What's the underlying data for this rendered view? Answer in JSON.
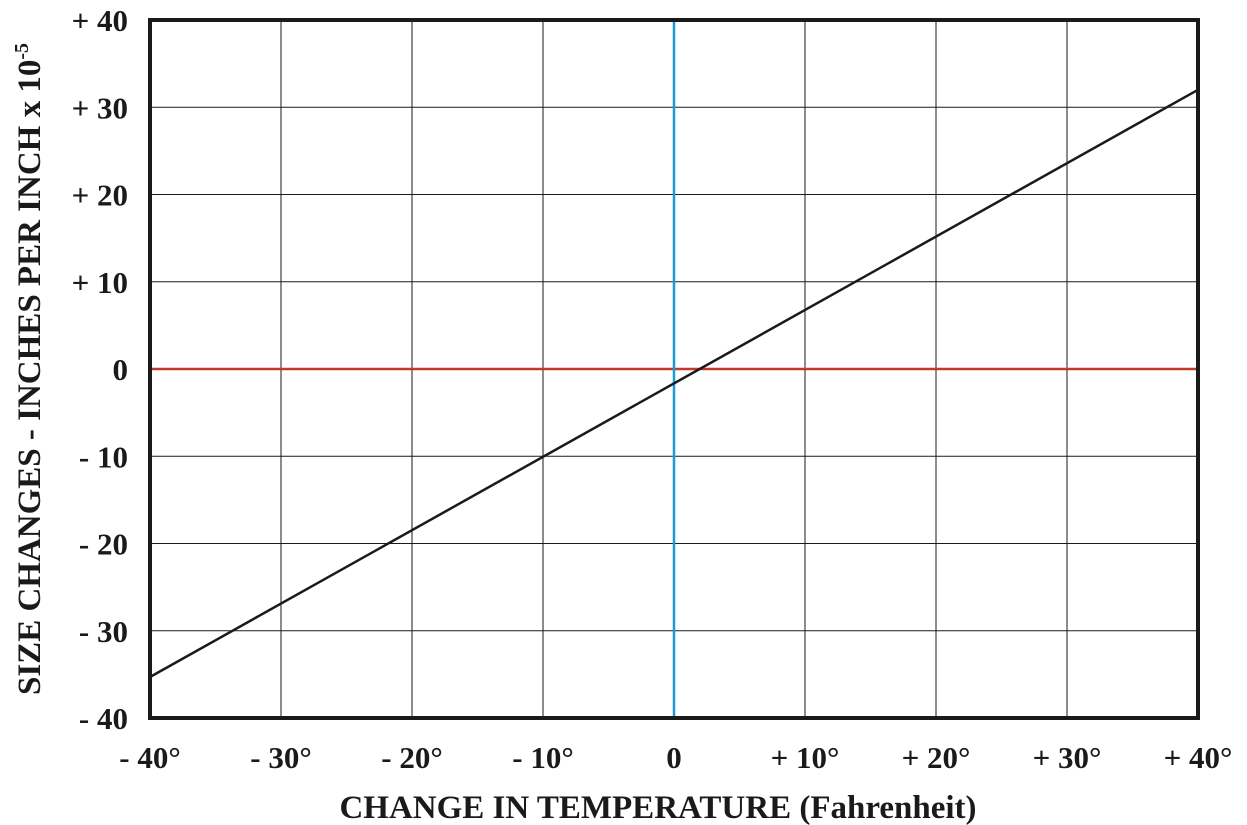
{
  "chart_data": {
    "type": "line",
    "title": "",
    "xlabel": "CHANGE IN TEMPERATURE (Fahrenheit)",
    "ylabel": "SIZE CHANGES - INCHES PER INCH x 10",
    "ylabel_superscript": "-5",
    "xlim": [
      -40,
      40
    ],
    "ylim": [
      -40,
      40
    ],
    "grid": true,
    "x_ticks": [
      -40,
      -30,
      -20,
      -10,
      0,
      10,
      20,
      30,
      40
    ],
    "x_tick_labels": [
      "- 40°",
      "- 30°",
      "- 20°",
      "- 10°",
      "0",
      "+ 10°",
      "+ 20°",
      "+ 30°",
      "+ 40°"
    ],
    "y_ticks": [
      40,
      30,
      20,
      10,
      0,
      -10,
      -20,
      -30,
      -40
    ],
    "y_tick_labels": [
      "+ 40",
      "+ 30",
      "+ 20",
      "+ 10",
      "0",
      "- 10",
      "- 20",
      "- 30",
      "- 40"
    ],
    "series": [
      {
        "x": [
          -40,
          40
        ],
        "y": [
          -35.3,
          32
        ],
        "color": "#1a1a1a"
      }
    ],
    "reference_lines": {
      "horizontal": {
        "y": 0,
        "color": "#c0392b"
      },
      "vertical": {
        "x": 0,
        "color": "#1a9ad6"
      }
    }
  }
}
